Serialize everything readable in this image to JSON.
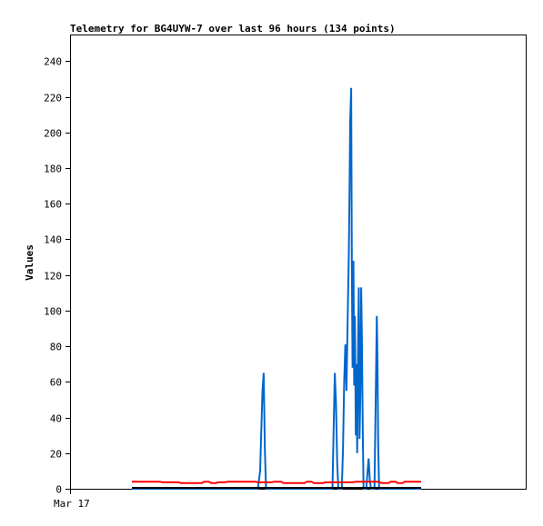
{
  "chart_data": {
    "type": "line",
    "title": "Telemetry for BG4UYW-7 over last 96 hours (134 points)",
    "ylabel": "Values",
    "xlabel": "",
    "x_tick_labels": [
      "Mar 17"
    ],
    "y_ticks": [
      0,
      20,
      40,
      60,
      80,
      100,
      120,
      140,
      160,
      180,
      200,
      220,
      240
    ],
    "ylim": [
      0,
      255
    ],
    "xlim": [
      0,
      134
    ],
    "grid": false,
    "legend": "none",
    "series": [
      {
        "color": "#0066cc",
        "points": [
          [
            0,
            0
          ],
          [
            54,
            0
          ],
          [
            55,
            10
          ],
          [
            55.5,
            33
          ],
          [
            56,
            55
          ],
          [
            56.5,
            65
          ],
          [
            57,
            22
          ],
          [
            57.5,
            0
          ],
          [
            86,
            0
          ],
          [
            86.5,
            33
          ],
          [
            87,
            65
          ],
          [
            87.5,
            48
          ],
          [
            88,
            15
          ],
          [
            88.5,
            0
          ],
          [
            90,
            0
          ],
          [
            90.5,
            22
          ],
          [
            91,
            60
          ],
          [
            91.5,
            81
          ],
          [
            92,
            55
          ],
          [
            92.5,
            94
          ],
          [
            93,
            131
          ],
          [
            93.3,
            168
          ],
          [
            93.6,
            206
          ],
          [
            94,
            225
          ],
          [
            94.3,
            130
          ],
          [
            94.6,
            68
          ],
          [
            95,
            128
          ],
          [
            95.3,
            58
          ],
          [
            95.6,
            97
          ],
          [
            96,
            30
          ],
          [
            96.3,
            70
          ],
          [
            96.6,
            20
          ],
          [
            97,
            86
          ],
          [
            97.3,
            113
          ],
          [
            97.6,
            28
          ],
          [
            98,
            57
          ],
          [
            98.3,
            113
          ],
          [
            98.6,
            84
          ],
          [
            99,
            30
          ],
          [
            99.3,
            0
          ],
          [
            100.5,
            0
          ],
          [
            101,
            9
          ],
          [
            101.5,
            17
          ],
          [
            102,
            5
          ],
          [
            102.5,
            0
          ],
          [
            104,
            0
          ],
          [
            104.5,
            48
          ],
          [
            105,
            97
          ],
          [
            105.3,
            73
          ],
          [
            105.6,
            25
          ],
          [
            106,
            0
          ],
          [
            124,
            0
          ]
        ]
      },
      {
        "color": "#ff0000",
        "points": [
          [
            0,
            4
          ],
          [
            12,
            4
          ],
          [
            13,
            3.6
          ],
          [
            20,
            3.6
          ],
          [
            21,
            3.2
          ],
          [
            30,
            3.2
          ],
          [
            31,
            4
          ],
          [
            33,
            4
          ],
          [
            34,
            3.2
          ],
          [
            36,
            3.2
          ],
          [
            37,
            3.6
          ],
          [
            40,
            3.6
          ],
          [
            41,
            4
          ],
          [
            53,
            4
          ],
          [
            54,
            3.6
          ],
          [
            60,
            3.6
          ],
          [
            61,
            4
          ],
          [
            64,
            4
          ],
          [
            65,
            3.2
          ],
          [
            74,
            3.2
          ],
          [
            75,
            4
          ],
          [
            77,
            4
          ],
          [
            78,
            3.2
          ],
          [
            82,
            3.2
          ],
          [
            83,
            3.6
          ],
          [
            95,
            3.6
          ],
          [
            96,
            4
          ],
          [
            106,
            4
          ],
          [
            107,
            3.2
          ],
          [
            110,
            3.2
          ],
          [
            111,
            4
          ],
          [
            113,
            4
          ],
          [
            114,
            3.2
          ],
          [
            116,
            3.2
          ],
          [
            117,
            4
          ],
          [
            124,
            4
          ]
        ]
      },
      {
        "color": "#000000",
        "points": [
          [
            0,
            0.5
          ],
          [
            124,
            0.5
          ]
        ]
      }
    ]
  }
}
